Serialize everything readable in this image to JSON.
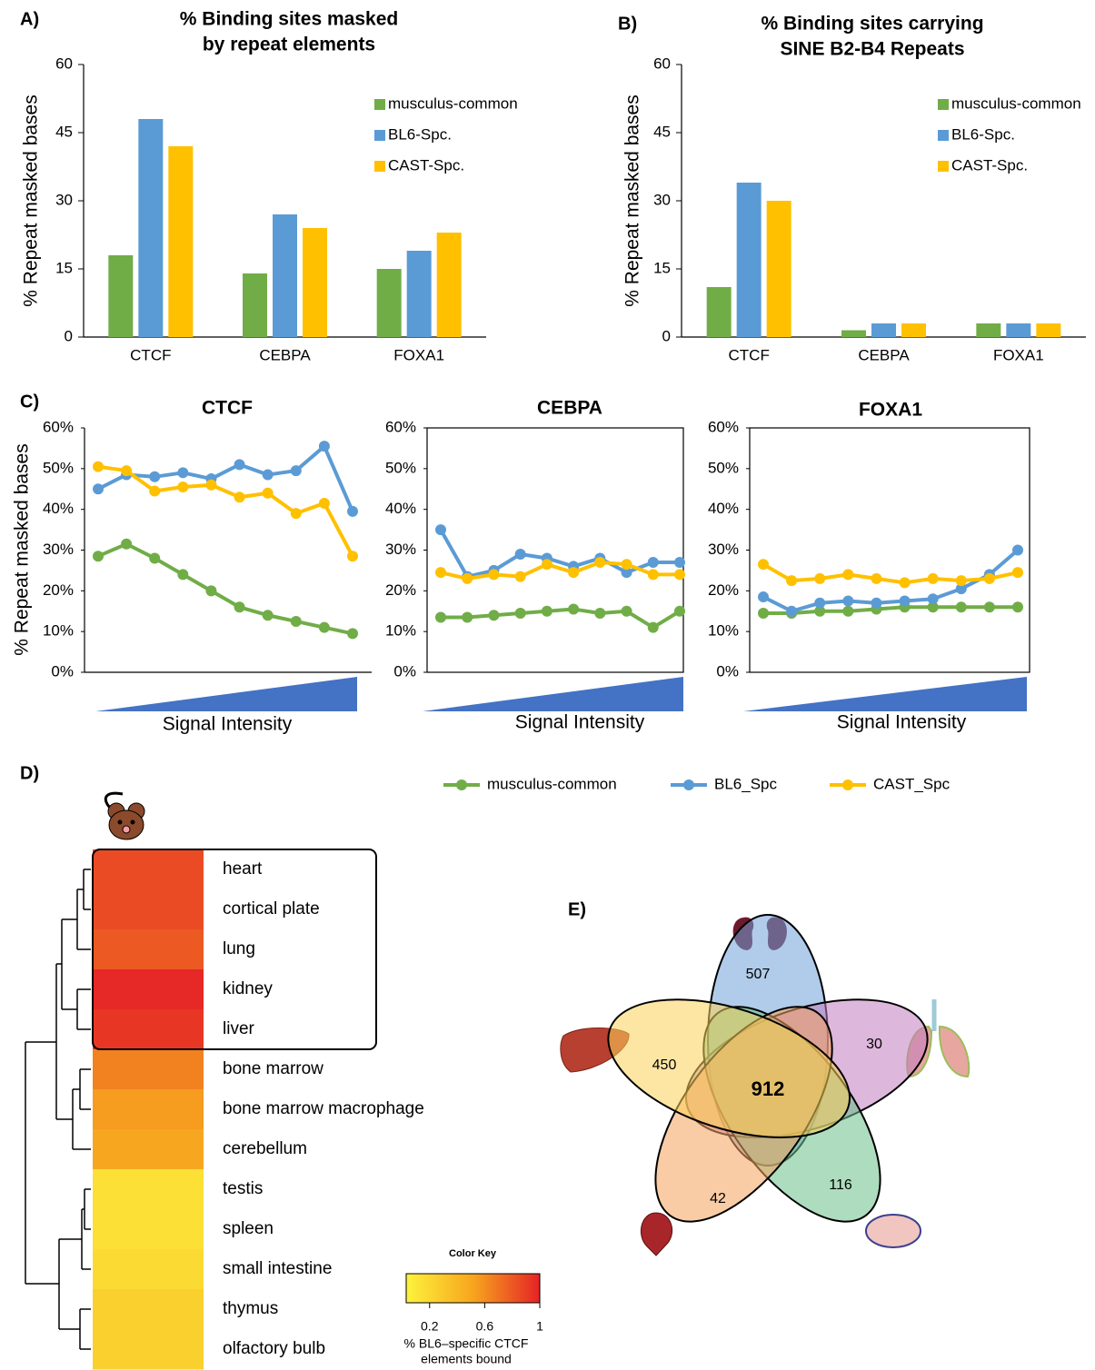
{
  "chart_data": [
    {
      "type": "bar",
      "panel": "A)",
      "title": [
        "% Binding sites masked",
        "by repeat elements"
      ],
      "ylabel": "% Repeat masked bases",
      "categories": [
        "CTCF",
        "CEBPA",
        "FOXA1"
      ],
      "series": [
        {
          "name": "musculus-common",
          "color": "#70ad47",
          "values": [
            18,
            14,
            15
          ]
        },
        {
          "name": "BL6-Spc.",
          "color": "#5b9bd5",
          "values": [
            48,
            27,
            19
          ]
        },
        {
          "name": "CAST-Spc.",
          "color": "#ffc000",
          "values": [
            42,
            24,
            23
          ]
        }
      ],
      "ylim": [
        0,
        60
      ],
      "yticks": [
        0,
        15,
        30,
        45,
        60
      ]
    },
    {
      "type": "bar",
      "panel": "B)",
      "title": [
        "% Binding sites carrying",
        "SINE B2-B4 Repeats"
      ],
      "ylabel": "% Repeat masked bases",
      "categories": [
        "CTCF",
        "CEBPA",
        "FOXA1"
      ],
      "series": [
        {
          "name": "musculus-common",
          "color": "#70ad47",
          "values": [
            11,
            1.5,
            3
          ]
        },
        {
          "name": "BL6-Spc.",
          "color": "#5b9bd5",
          "values": [
            34,
            3,
            3
          ]
        },
        {
          "name": "CAST-Spc.",
          "color": "#ffc000",
          "values": [
            30,
            3,
            3
          ]
        }
      ],
      "ylim": [
        0,
        60
      ],
      "yticks": [
        0,
        15,
        30,
        45,
        60
      ]
    },
    {
      "type": "line",
      "panel": "C)",
      "ylabel": "% Repeat masked bases",
      "xlabel": "Signal Intensity",
      "categories": [
        null,
        null,
        null,
        null,
        null,
        null,
        null,
        null,
        null,
        null
      ],
      "ylim": [
        0,
        60
      ],
      "yticks": [
        {
          "value": 0,
          "label": "0%"
        },
        {
          "value": 10,
          "label": "10%"
        },
        {
          "value": 20,
          "label": "20%"
        },
        {
          "value": 30,
          "label": "30%"
        },
        {
          "value": 40,
          "label": "40%"
        },
        {
          "value": 50,
          "label": "50%"
        },
        {
          "value": 60,
          "label": "60%"
        }
      ],
      "series": [
        {
          "name": "musculus-common",
          "color": "#70ad47"
        },
        {
          "name": "BL6_Spc",
          "color": "#5b9bd5"
        },
        {
          "name": "CAST_Spc",
          "color": "#ffc000"
        }
      ],
      "plots": [
        {
          "title": "CTCF",
          "values": [
            [
              28.5,
              31.5,
              28,
              24,
              20,
              16,
              14,
              12.5,
              11,
              9.5
            ],
            [
              45,
              48.5,
              48,
              49,
              47.5,
              51,
              48.5,
              49.5,
              55.5,
              39.5
            ],
            [
              50.5,
              49.5,
              44.5,
              45.5,
              46,
              43,
              44,
              39,
              41.5,
              28.5
            ]
          ]
        },
        {
          "title": "CEBPA",
          "values": [
            [
              13.5,
              13.5,
              14,
              14.5,
              15,
              15.5,
              14.5,
              15,
              11,
              15
            ],
            [
              35,
              23.5,
              25,
              29,
              28,
              26,
              28,
              24.5,
              27,
              27
            ],
            [
              24.5,
              23,
              24,
              23.5,
              26.5,
              24.5,
              27,
              26.5,
              24,
              24
            ]
          ]
        },
        {
          "title": "FOXA1",
          "values": [
            [
              14.5,
              14.5,
              15,
              15,
              15.5,
              16,
              16,
              16,
              16,
              16
            ],
            [
              18.5,
              15,
              17,
              17.5,
              17,
              17.5,
              18,
              20.5,
              24,
              30
            ],
            [
              26.5,
              22.5,
              23,
              24,
              23,
              22,
              23,
              22.5,
              23,
              24.5
            ]
          ]
        }
      ]
    },
    {
      "type": "heatmap",
      "panel": "D)",
      "rows": [
        "heart",
        "cortical plate",
        "lung",
        "kidney",
        "liver",
        "bone marrow",
        "bone marrow macrophage",
        "cerebellum",
        "testis",
        "spleen",
        "small intestine",
        "thymus",
        "olfactory bulb"
      ],
      "values": [
        0.85,
        0.85,
        0.8,
        0.98,
        0.93,
        0.65,
        0.55,
        0.5,
        0.15,
        0.15,
        0.18,
        0.25,
        0.25
      ],
      "clim": [
        0.03,
        1
      ],
      "colorbar": {
        "title": "Color Key",
        "ticks": [
          0.2,
          0.6,
          1
        ],
        "label": [
          "% BL6–specific CTCF",
          "elements bound"
        ]
      }
    },
    {
      "type": "venn",
      "panel": "E)",
      "sets": [
        {
          "color": "#6fa3d9"
        },
        {
          "color": "#c27bc0"
        },
        {
          "color": "#6cc08a"
        },
        {
          "color": "#f5a35d"
        },
        {
          "color": "#fcd25a"
        }
      ],
      "counts": [
        507,
        30,
        116,
        42,
        450,
        912
      ]
    }
  ]
}
